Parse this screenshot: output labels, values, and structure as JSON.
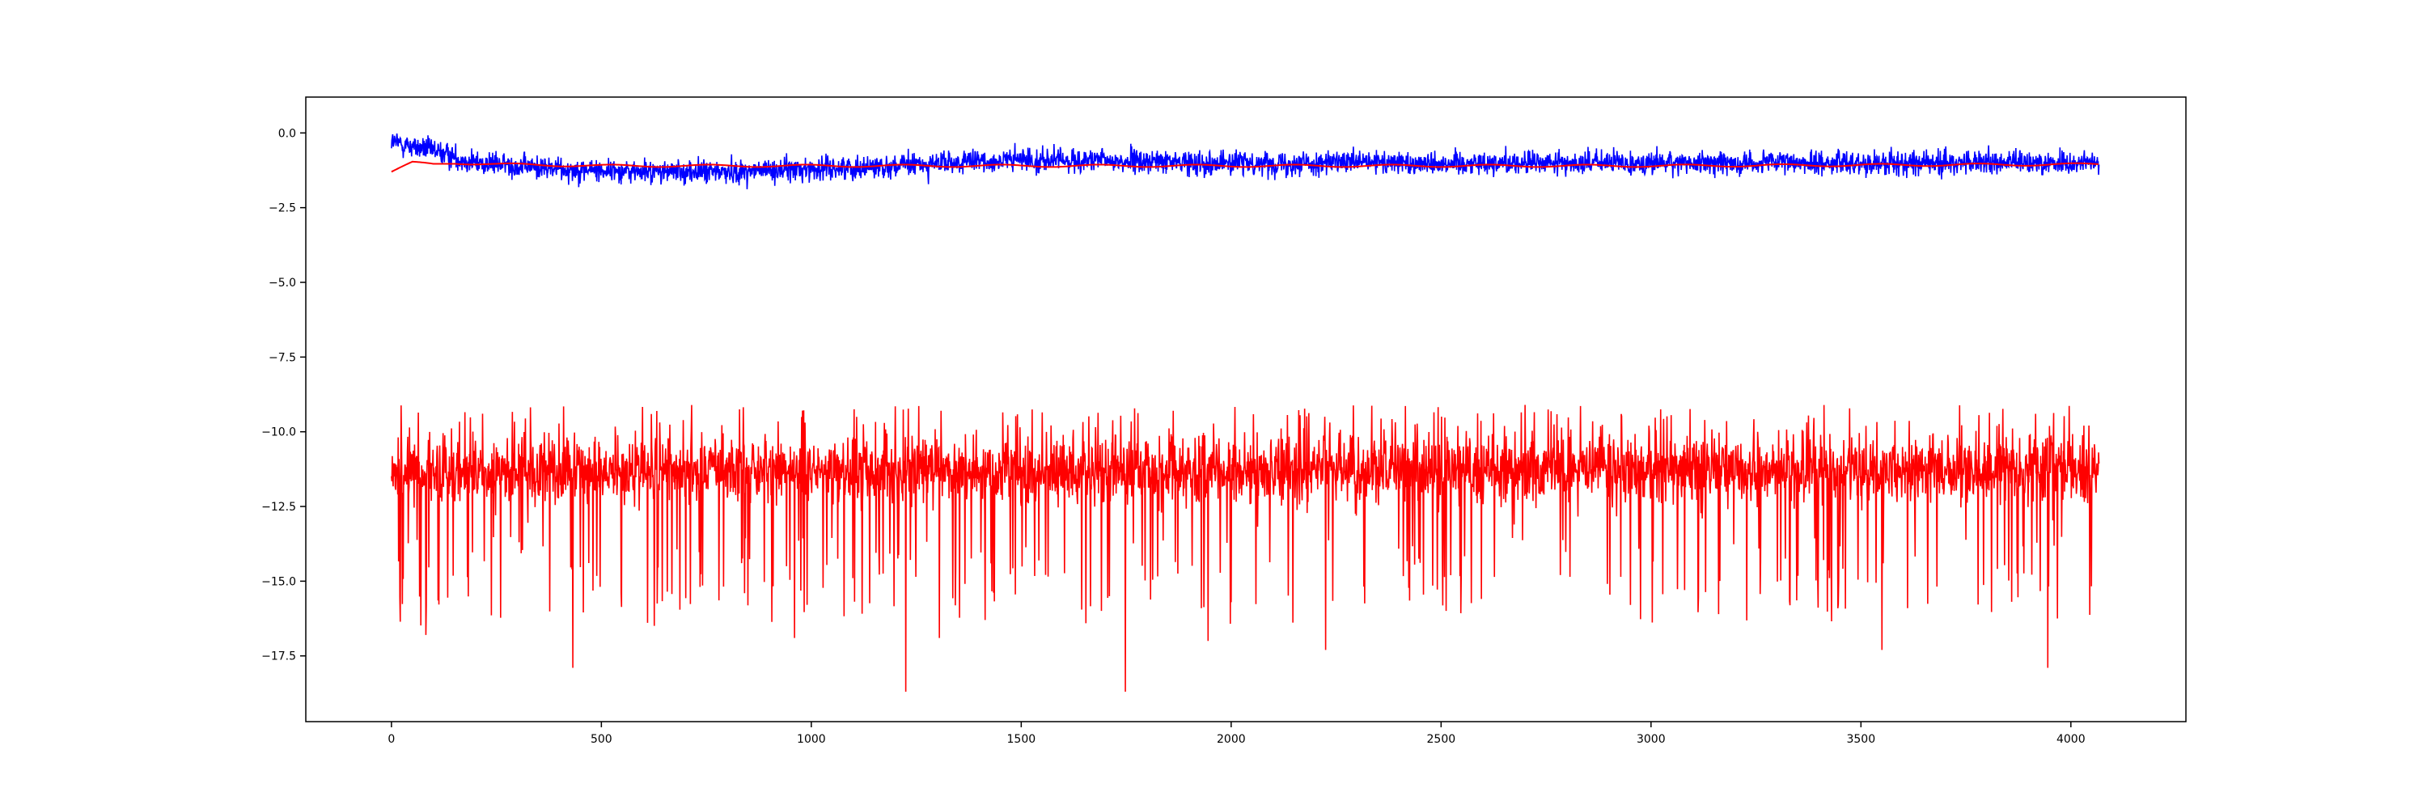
{
  "chart_data": {
    "type": "line",
    "title": "",
    "xlabel": "",
    "ylabel": "",
    "xlim": [
      -204,
      4274
    ],
    "ylim": [
      -19.7,
      1.2
    ],
    "grid": false,
    "legend": "none",
    "x_ticks": [
      0,
      500,
      1000,
      1500,
      2000,
      2500,
      3000,
      3500,
      4000
    ],
    "x_tick_labels": [
      "0",
      "500",
      "1000",
      "1500",
      "2000",
      "2500",
      "3000",
      "3500",
      "4000"
    ],
    "y_ticks": [
      0.0,
      -2.5,
      -5.0,
      -7.5,
      -10.0,
      -12.5,
      -15.0,
      -17.5
    ],
    "y_tick_labels": [
      "0.0",
      "−2.5",
      "−5.0",
      "−7.5",
      "−10.0",
      "−12.5",
      "−15.0",
      "−17.5"
    ],
    "n_points": 4068,
    "series": [
      {
        "color": "#0000ff",
        "description_values": {
          "x_range": [
            0,
            4067
          ],
          "mean_profile_x": [
            0,
            100,
            200,
            400,
            600,
            800,
            1000,
            1200,
            1500,
            2000,
            2500,
            3000,
            3500,
            4067
          ],
          "mean_profile_y": [
            -0.3,
            -0.6,
            -1.0,
            -1.2,
            -1.3,
            -1.3,
            -1.2,
            -1.1,
            -0.9,
            -1.0,
            -1.0,
            -1.0,
            -1.0,
            -1.0
          ],
          "noise_range": [
            -2.3,
            0.2
          ]
        }
      },
      {
        "color": "#ff0000",
        "description_values": {
          "x_range": [
            0,
            4067
          ],
          "mean_level": -11.3,
          "upper_peaks": [
            -8.8,
            -9.2
          ],
          "lowest_spikes": [
            [
              82,
              -16.8
            ],
            [
              432,
              -17.9
            ],
            [
              1225,
              -18.7
            ],
            [
              1748,
              -18.7
            ],
            [
              2225,
              -17.3
            ],
            [
              3550,
              -17.3
            ],
            [
              3945,
              -17.9
            ],
            [
              960,
              -16.9
            ],
            [
              1305,
              -16.9
            ],
            [
              1945,
              -17.0
            ]
          ]
        }
      },
      {
        "color": "#ff0000",
        "description_values": {
          "x_range": [
            0,
            4067
          ],
          "mean_profile_x": [
            0,
            50,
            100,
            150,
            250,
            500,
            1000,
            2000,
            3000,
            4067
          ],
          "mean_profile_y": [
            -1.3,
            -1.0,
            -1.05,
            -1.0,
            -1.05,
            -1.1,
            -1.1,
            -1.1,
            -1.1,
            -1.05
          ]
        }
      }
    ]
  }
}
